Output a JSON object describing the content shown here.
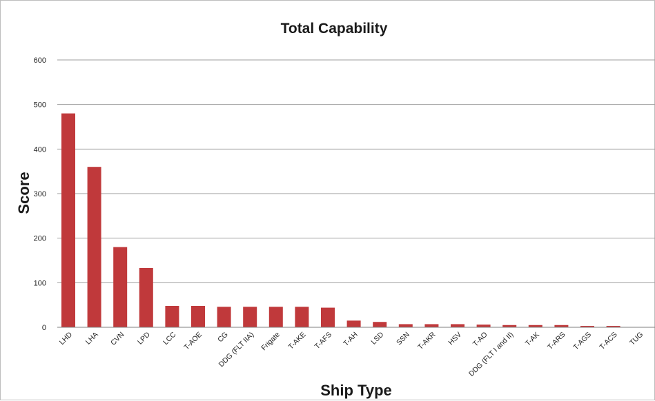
{
  "chart_data": {
    "type": "bar",
    "title": "Total Capability",
    "xlabel": "Ship Type",
    "ylabel": "Score",
    "ylim": [
      0,
      600
    ],
    "yticks": [
      0,
      100,
      200,
      300,
      400,
      500,
      600
    ],
    "grid": true,
    "legend": "none",
    "bar_color": "#c0393b",
    "categories": [
      "LHD",
      "LHA",
      "CVN",
      "LPD",
      "LCC",
      "T-AOE",
      "CG",
      "DDG (FLT IIA)",
      "Frigate",
      "T-AKE",
      "T-AFS",
      "T-AH",
      "LSD",
      "SSN",
      "T-AKR",
      "HSV",
      "T-AO",
      "DDG (FLT I and II)",
      "T-AK",
      "T-ARS",
      "T-AGS",
      "T-ACS",
      "TUG"
    ],
    "values": [
      480,
      360,
      180,
      133,
      48,
      48,
      46,
      46,
      46,
      46,
      44,
      15,
      12,
      7,
      7,
      7,
      6,
      5,
      5,
      5,
      3,
      3,
      0
    ]
  }
}
